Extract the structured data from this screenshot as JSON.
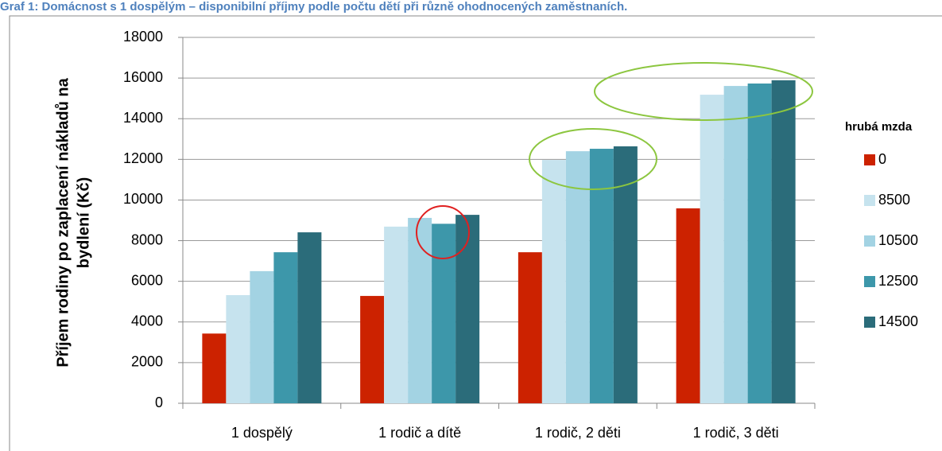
{
  "chart_data": {
    "type": "bar",
    "title": "Graf 1: Domácnost s 1 dospělým – disponibilní příjmy podle počtu dětí při různě ohodnocených zaměstnaních.",
    "ylabel": [
      "Příjem rodiny po zaplacení nákladů na",
      "bydlení (Kč)"
    ],
    "legend_title": "hrubá mzda",
    "categories": [
      "1 dospělý",
      "1 rodič a dítě",
      "1 rodič, 2 děti",
      "1 rodič, 3 děti"
    ],
    "series": [
      {
        "name": "0",
        "color": "#cc2200",
        "values": [
          3430,
          5280,
          7430,
          9590
        ]
      },
      {
        "name": "8500",
        "color": "#c6e3ee",
        "values": [
          5320,
          8690,
          11970,
          15180
        ]
      },
      {
        "name": "10500",
        "color": "#a3d3e3",
        "values": [
          6500,
          9120,
          12400,
          15610
        ]
      },
      {
        "name": "12500",
        "color": "#3d97aa",
        "values": [
          7430,
          8830,
          12520,
          15730
        ]
      },
      {
        "name": "14500",
        "color": "#2b6c7a",
        "values": [
          8410,
          9270,
          12640,
          15890
        ]
      }
    ],
    "ylim": [
      0,
      18000
    ],
    "yticks": [
      0,
      2000,
      4000,
      6000,
      8000,
      10000,
      12000,
      14000,
      16000,
      18000
    ],
    "grid": true,
    "legend": "right"
  }
}
